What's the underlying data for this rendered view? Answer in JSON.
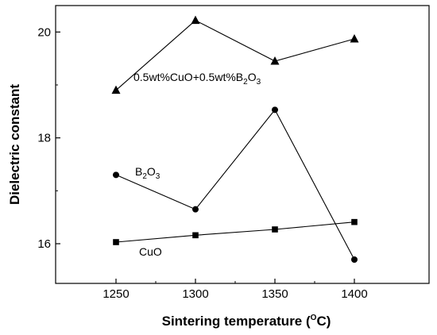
{
  "chart_data": {
    "type": "line",
    "xlabel": "Sintering temperature (",
    "xlabel_sup": "O",
    "xlabel_end": "C)",
    "ylabel": "Dielectric constant",
    "x": [
      1250,
      1300,
      1350,
      1400
    ],
    "xticks": [
      "1250",
      "1300",
      "1350",
      "1400"
    ],
    "yticks": [
      "16",
      "18",
      "20"
    ],
    "xlim": [
      1212,
      1447
    ],
    "ylim": [
      15.25,
      20.5
    ],
    "grid": false,
    "series": [
      {
        "marker": "triangle",
        "values": [
          18.9,
          20.22,
          19.45,
          19.87
        ],
        "label_parts": [
          "0.5wt%CuO+0.5wt%B",
          "2",
          "O",
          "3",
          ""
        ]
      },
      {
        "marker": "circle",
        "values": [
          17.3,
          16.65,
          18.53,
          15.7
        ],
        "label_parts": [
          "B",
          "2",
          "O",
          "3",
          ""
        ]
      },
      {
        "marker": "square",
        "values": [
          16.03,
          16.16,
          16.27,
          16.41
        ],
        "label_parts": [
          "CuO",
          "",
          "",
          "",
          ""
        ]
      }
    ]
  }
}
